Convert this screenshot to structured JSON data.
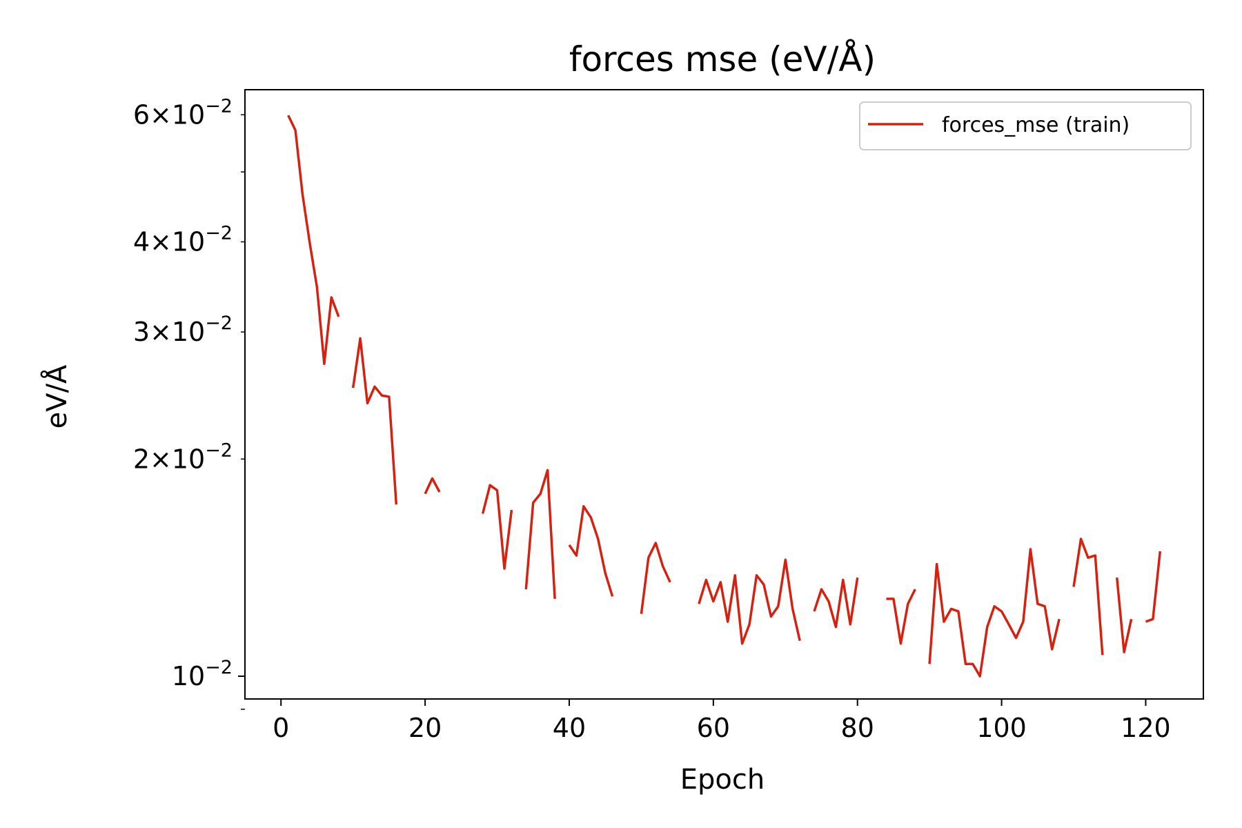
{
  "chart_data": {
    "type": "line",
    "title": "forces mse (eV/Å)",
    "xlabel": "Epoch",
    "ylabel": "eV/Å",
    "xlim": [
      -5,
      128
    ],
    "ylim": [
      0.0093,
      0.065
    ],
    "y_scale": "log",
    "x_ticks": [
      {
        "value": 0,
        "label": "0"
      },
      {
        "value": 20,
        "label": "20"
      },
      {
        "value": 40,
        "label": "40"
      },
      {
        "value": 60,
        "label": "60"
      },
      {
        "value": 80,
        "label": "80"
      },
      {
        "value": 100,
        "label": "100"
      },
      {
        "value": 120,
        "label": "120"
      }
    ],
    "y_major_ticks": [
      {
        "value": 0.01,
        "mantissa": "",
        "exponent": "−2"
      }
    ],
    "y_minor_labeled_ticks": [
      {
        "value": 0.02,
        "mantissa": "2",
        "exponent": "−2"
      },
      {
        "value": 0.03,
        "mantissa": "3",
        "exponent": "−2"
      },
      {
        "value": 0.04,
        "mantissa": "4",
        "exponent": "−2"
      },
      {
        "value": 0.06,
        "mantissa": "6",
        "exponent": "−2"
      }
    ],
    "y_minor_unlabeled_ticks": [
      0.05,
      0.009
    ],
    "grid": false,
    "legend_position": "top-right",
    "series": [
      {
        "name": "forces_mse (train)",
        "color": "#d62010",
        "x": [
          1,
          2,
          3,
          4,
          5,
          6,
          7,
          8,
          9,
          10,
          11,
          12,
          13,
          14,
          15,
          16,
          17,
          18,
          19,
          20,
          21,
          22,
          23,
          24,
          25,
          26,
          27,
          28,
          29,
          30,
          31,
          32,
          33,
          34,
          35,
          36,
          37,
          38,
          39,
          40,
          41,
          42,
          43,
          44,
          45,
          46,
          47,
          48,
          49,
          50,
          51,
          52,
          53,
          54,
          55,
          56,
          57,
          58,
          59,
          60,
          61,
          62,
          63,
          64,
          65,
          66,
          67,
          68,
          69,
          70,
          71,
          72,
          73,
          74,
          75,
          76,
          77,
          78,
          79,
          80,
          81,
          82,
          83,
          84,
          85,
          86,
          87,
          88,
          89,
          90,
          91,
          92,
          93,
          94,
          95,
          96,
          97,
          98,
          99,
          100,
          101,
          102,
          103,
          104,
          105,
          106,
          107,
          108,
          109,
          110,
          111,
          112,
          113,
          114,
          115,
          116,
          117,
          118,
          119,
          120,
          121,
          122
        ],
        "y": [
          0.0599,
          0.0571,
          0.0465,
          0.0398,
          0.0346,
          0.0271,
          0.0335,
          0.0315,
          null,
          0.0251,
          0.0294,
          0.0239,
          0.0252,
          0.0245,
          0.0244,
          0.0173,
          null,
          null,
          null,
          0.0179,
          0.0188,
          0.018,
          null,
          null,
          null,
          null,
          null,
          0.0168,
          0.0184,
          0.0181,
          0.0141,
          0.017,
          null,
          0.0132,
          0.0174,
          0.0179,
          0.0193,
          0.0128,
          null,
          0.0152,
          0.0147,
          0.0172,
          0.0166,
          0.0155,
          0.0139,
          0.0129,
          null,
          null,
          null,
          0.0122,
          0.0146,
          0.0153,
          0.0142,
          0.0135,
          null,
          null,
          null,
          0.0126,
          0.0136,
          0.0127,
          0.0135,
          0.0119,
          0.0138,
          0.0111,
          0.0118,
          0.0138,
          0.0134,
          0.0121,
          0.0125,
          0.0145,
          0.0124,
          0.0112,
          null,
          0.0123,
          0.0132,
          0.0127,
          0.0117,
          0.0136,
          0.0118,
          0.0137,
          null,
          null,
          null,
          0.0128,
          0.0128,
          0.0111,
          0.0126,
          0.0132,
          null,
          0.0104,
          0.0143,
          0.0119,
          0.0124,
          0.0123,
          0.0104,
          0.0104,
          0.01,
          0.0117,
          0.0125,
          0.0123,
          0.0118,
          0.0113,
          0.0119,
          0.015,
          0.0126,
          0.0125,
          0.0109,
          0.012,
          null,
          0.0133,
          0.0155,
          0.0146,
          0.0147,
          0.0107,
          null,
          0.0137,
          0.0108,
          0.012,
          null,
          0.0119,
          0.012,
          0.0149
        ]
      }
    ]
  }
}
